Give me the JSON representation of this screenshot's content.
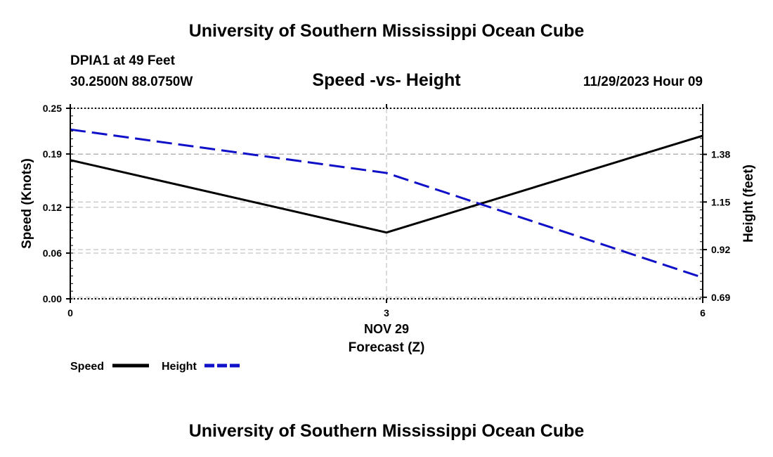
{
  "header": {
    "title": "University of Southern Mississippi Ocean Cube",
    "station": "DPIA1 at 49 Feet",
    "coordinates": "30.2500N  88.0750W",
    "subtitle": "Speed -vs- Height",
    "datetime": "11/29/2023 Hour 09"
  },
  "footer": {
    "title": "University of Southern Mississippi Ocean Cube"
  },
  "colors": {
    "speed": "#000000",
    "height": "#1010c8",
    "grid": "#b4b4b4"
  },
  "chart_data": {
    "type": "line",
    "title": "Speed -vs- Height",
    "xlabel": "Forecast (Z)",
    "x_center_label": "NOV 29",
    "xlim": [
      0,
      6
    ],
    "x_ticks": [
      "0",
      "3",
      "6"
    ],
    "y_left": {
      "label": "Speed (Knots)",
      "range": [
        0,
        0.25
      ],
      "ticks": [
        "0.00",
        "0.06",
        "0.12",
        "0.19",
        "0.25"
      ]
    },
    "y_right": {
      "label": "Height (feet)",
      "range": [
        0.6825,
        1.6025
      ],
      "ticks": [
        "0.69",
        "0.92",
        "1.15",
        "1.38"
      ]
    },
    "series": [
      {
        "name": "Speed",
        "axis": "left",
        "style": "solid",
        "x": [
          0,
          3,
          6
        ],
        "values": [
          0.182,
          0.087,
          0.214
        ]
      },
      {
        "name": "Height",
        "axis": "right",
        "style": "dashed",
        "x": [
          0,
          3,
          6
        ],
        "values": [
          1.5,
          1.29,
          0.785
        ]
      }
    ],
    "legend": [
      {
        "label": "Speed",
        "style": "solid"
      },
      {
        "label": "Height",
        "style": "dashed"
      }
    ],
    "legend_position": "bottom-left",
    "grid": true
  }
}
